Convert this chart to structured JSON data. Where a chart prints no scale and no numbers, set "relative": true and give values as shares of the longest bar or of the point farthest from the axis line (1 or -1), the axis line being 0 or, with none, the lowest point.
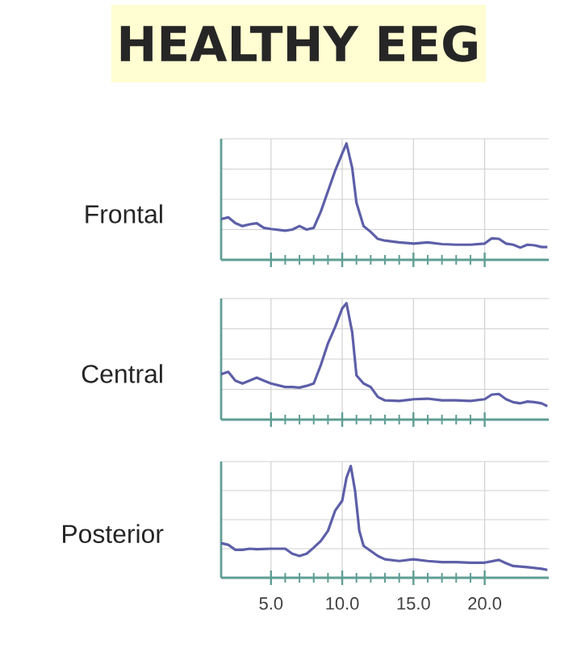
{
  "chart_data": [
    {
      "type": "line",
      "title": "HEALTHY EEG",
      "ylabel": "Frontal",
      "relative": true,
      "xlim": [
        1.5,
        24.5
      ],
      "xticks": [
        5,
        10,
        15,
        20
      ],
      "tick_labels": false,
      "grid": true,
      "marker": "none",
      "line_style": "solid",
      "x": [
        1.5,
        2,
        2.5,
        3,
        3.5,
        4,
        4.5,
        5,
        6,
        6.5,
        7,
        7.5,
        8,
        8.5,
        9,
        9.5,
        10,
        10.3,
        10.7,
        11,
        11.5,
        12,
        12.5,
        13,
        14,
        15,
        16,
        17,
        18,
        19,
        20,
        20.5,
        21,
        21.5,
        22,
        22.5,
        23,
        23.5,
        24,
        24.4
      ],
      "series": [
        {
          "color": "#5d5fa8",
          "values": [
            0.35,
            0.365,
            0.315,
            0.29,
            0.305,
            0.315,
            0.275,
            0.265,
            0.25,
            0.26,
            0.29,
            0.26,
            0.275,
            0.415,
            0.59,
            0.765,
            0.915,
            1,
            0.79,
            0.49,
            0.29,
            0.24,
            0.18,
            0.165,
            0.15,
            0.14,
            0.15,
            0.135,
            0.13,
            0.13,
            0.14,
            0.185,
            0.18,
            0.14,
            0.13,
            0.105,
            0.13,
            0.125,
            0.11,
            0.11
          ]
        }
      ]
    },
    {
      "type": "line",
      "ylabel": "Central",
      "relative": true,
      "xlim": [
        1.5,
        24.5
      ],
      "xticks": [
        5,
        10,
        15,
        20
      ],
      "tick_labels": false,
      "grid": true,
      "marker": "none",
      "line_style": "solid",
      "x": [
        1.5,
        2,
        2.5,
        3,
        3.5,
        4,
        4.5,
        5,
        6,
        6.5,
        7,
        7.5,
        8,
        8.5,
        9,
        9.5,
        10,
        10.3,
        10.7,
        11,
        11.5,
        12,
        12.5,
        13,
        14,
        15,
        16,
        17,
        18,
        19,
        20,
        20.5,
        21,
        21.5,
        22,
        22.5,
        23,
        23.5,
        24,
        24.4
      ],
      "series": [
        {
          "color": "#5d5fa8",
          "values": [
            0.39,
            0.41,
            0.335,
            0.31,
            0.335,
            0.36,
            0.335,
            0.31,
            0.28,
            0.28,
            0.275,
            0.29,
            0.31,
            0.47,
            0.655,
            0.795,
            0.955,
            1,
            0.75,
            0.38,
            0.31,
            0.28,
            0.195,
            0.165,
            0.16,
            0.175,
            0.18,
            0.165,
            0.165,
            0.16,
            0.175,
            0.215,
            0.22,
            0.175,
            0.15,
            0.14,
            0.155,
            0.15,
            0.14,
            0.115
          ]
        }
      ]
    },
    {
      "type": "line",
      "ylabel": "Posterior",
      "relative": true,
      "xlim": [
        1.5,
        24.5
      ],
      "xticks": [
        {
          "value": 5,
          "label": "5.0"
        },
        {
          "value": 10,
          "label": "10.0"
        },
        {
          "value": 15,
          "label": "15.0"
        },
        {
          "value": 20,
          "label": "20.0"
        }
      ],
      "grid": true,
      "marker": "none",
      "line_style": "solid",
      "x": [
        1.5,
        2,
        2.5,
        3,
        3.5,
        4,
        5,
        6,
        6.5,
        7,
        7.5,
        8,
        8.5,
        9,
        9.5,
        10,
        10.3,
        10.6,
        10.9,
        11.2,
        11.5,
        12,
        12.5,
        13,
        14,
        15,
        16,
        17,
        18,
        19,
        20,
        21,
        21.5,
        22,
        23,
        24,
        24.4
      ],
      "series": [
        {
          "color": "#5d5fa8",
          "values": [
            0.31,
            0.295,
            0.25,
            0.25,
            0.26,
            0.255,
            0.26,
            0.26,
            0.215,
            0.195,
            0.215,
            0.27,
            0.33,
            0.42,
            0.6,
            0.69,
            0.895,
            1,
            0.78,
            0.42,
            0.285,
            0.24,
            0.195,
            0.165,
            0.15,
            0.165,
            0.15,
            0.14,
            0.14,
            0.135,
            0.135,
            0.16,
            0.13,
            0.105,
            0.095,
            0.08,
            0.07
          ]
        }
      ]
    }
  ]
}
